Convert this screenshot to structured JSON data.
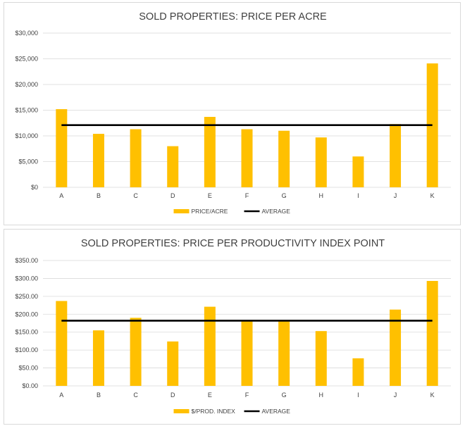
{
  "chart_data": [
    {
      "type": "bar",
      "title": "SOLD PROPERTIES: PRICE PER ACRE",
      "xlabel": "",
      "ylabel": "",
      "categories": [
        "A",
        "B",
        "C",
        "D",
        "E",
        "F",
        "G",
        "H",
        "I",
        "J",
        "K"
      ],
      "series": [
        {
          "name": "PRICE/ACRE",
          "type": "bar",
          "color": "#FFC000",
          "values": [
            15200,
            10400,
            11300,
            8000,
            13700,
            11300,
            11000,
            9700,
            6000,
            12300,
            24100
          ]
        },
        {
          "name": "AVERAGE",
          "type": "line",
          "color": "#000000",
          "values": [
            12100,
            12100,
            12100,
            12100,
            12100,
            12100,
            12100,
            12100,
            12100,
            12100,
            12100
          ]
        }
      ],
      "ylim": [
        0,
        30000
      ],
      "yticks": [
        0,
        5000,
        10000,
        15000,
        20000,
        25000,
        30000
      ],
      "ytick_labels": [
        "$0",
        "$5,000",
        "$10,000",
        "$15,000",
        "$20,000",
        "$25,000",
        "$30,000"
      ],
      "grid": true,
      "legend_position": "bottom"
    },
    {
      "type": "bar",
      "title": "SOLD PROPERTIES: PRICE PER PRODUCTIVITY INDEX  POINT",
      "xlabel": "",
      "ylabel": "",
      "categories": [
        "A",
        "B",
        "C",
        "D",
        "E",
        "F",
        "G",
        "H",
        "I",
        "J",
        "K"
      ],
      "series": [
        {
          "name": "$/PROD. INDEX",
          "type": "bar",
          "color": "#FFC000",
          "values": [
            237,
            155,
            190,
            124,
            221,
            180,
            180,
            153,
            77,
            213,
            293
          ]
        },
        {
          "name": "AVERAGE",
          "type": "line",
          "color": "#000000",
          "values": [
            182,
            182,
            182,
            182,
            182,
            182,
            182,
            182,
            182,
            182,
            182
          ]
        }
      ],
      "ylim": [
        0,
        350
      ],
      "yticks": [
        0,
        50,
        100,
        150,
        200,
        250,
        300,
        350
      ],
      "ytick_labels": [
        "$0.00",
        "$50.00",
        "$100.00",
        "$150.00",
        "$200.00",
        "$250.00",
        "$300.00",
        "$350.00"
      ],
      "grid": true,
      "legend_position": "bottom"
    }
  ]
}
